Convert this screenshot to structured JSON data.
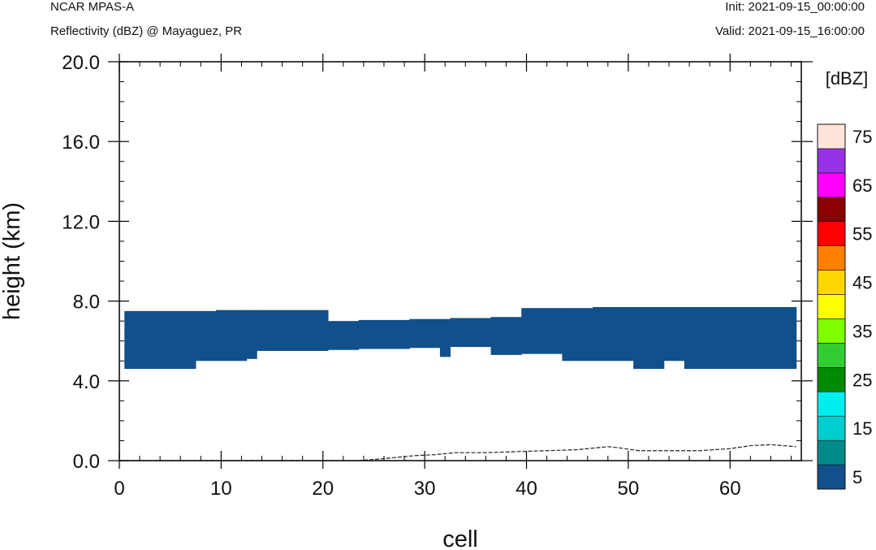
{
  "header": {
    "model": "NCAR MPAS-A",
    "field": "Reflectivity (dBZ) @ Mayaguez, PR",
    "init": "Init: 2021-09-15_00:00:00",
    "valid": "Valid: 2021-09-15_16:00:00"
  },
  "chart_data": {
    "type": "heatmap",
    "xlabel": "cell",
    "ylabel": "height (km)",
    "xlim": [
      0,
      67
    ],
    "ylim": [
      0,
      20
    ],
    "x_ticks": [
      0,
      10,
      20,
      30,
      40,
      50,
      60
    ],
    "x_tick_labels": [
      "0",
      "10",
      "20",
      "30",
      "40",
      "50",
      "60"
    ],
    "y_ticks": [
      0,
      4,
      8,
      12,
      16,
      20
    ],
    "y_tick_labels": [
      "0.0",
      "4.0",
      "8.0",
      "12.0",
      "16.0",
      "20.0"
    ],
    "reflectivity_band_5_dBZ": [
      {
        "x0": 0.5,
        "x1": 7.5,
        "bottom": 4.6,
        "top": 7.5
      },
      {
        "x0": 7.5,
        "x1": 9.5,
        "bottom": 5.0,
        "top": 7.5
      },
      {
        "x0": 9.5,
        "x1": 12.5,
        "bottom": 5.0,
        "top": 7.55
      },
      {
        "x0": 12.5,
        "x1": 13.5,
        "bottom": 5.1,
        "top": 7.55
      },
      {
        "x0": 13.5,
        "x1": 20.5,
        "bottom": 5.5,
        "top": 7.55
      },
      {
        "x0": 20.5,
        "x1": 23.5,
        "bottom": 5.55,
        "top": 7.0
      },
      {
        "x0": 23.5,
        "x1": 28.5,
        "bottom": 5.6,
        "top": 7.05
      },
      {
        "x0": 28.5,
        "x1": 31.5,
        "bottom": 5.65,
        "top": 7.1
      },
      {
        "x0": 31.5,
        "x1": 32.5,
        "bottom": 5.2,
        "top": 7.1
      },
      {
        "x0": 32.5,
        "x1": 36.5,
        "bottom": 5.7,
        "top": 7.15
      },
      {
        "x0": 36.5,
        "x1": 39.5,
        "bottom": 5.3,
        "top": 7.2
      },
      {
        "x0": 39.5,
        "x1": 43.5,
        "bottom": 5.35,
        "top": 7.65
      },
      {
        "x0": 43.5,
        "x1": 46.5,
        "bottom": 5.0,
        "top": 7.65
      },
      {
        "x0": 46.5,
        "x1": 50.5,
        "bottom": 5.0,
        "top": 7.7
      },
      {
        "x0": 50.5,
        "x1": 53.5,
        "bottom": 4.6,
        "top": 7.7
      },
      {
        "x0": 53.5,
        "x1": 55.5,
        "bottom": 5.0,
        "top": 7.7
      },
      {
        "x0": 55.5,
        "x1": 66.5,
        "bottom": 4.6,
        "top": 7.7
      }
    ],
    "terrain_height_km": {
      "x": [
        0,
        23.5,
        26,
        29,
        31,
        33,
        36,
        39,
        42,
        45,
        48,
        49,
        51,
        54,
        57,
        60,
        62,
        64,
        66.5
      ],
      "y": [
        0,
        0,
        0.1,
        0.25,
        0.3,
        0.4,
        0.4,
        0.45,
        0.5,
        0.55,
        0.7,
        0.65,
        0.5,
        0.5,
        0.5,
        0.6,
        0.75,
        0.8,
        0.7
      ]
    },
    "colorbar": {
      "title": "[dBZ]",
      "levels": [
        5,
        10,
        15,
        20,
        25,
        30,
        35,
        40,
        45,
        50,
        55,
        60,
        65,
        70,
        75
      ],
      "labels": [
        "5",
        "15",
        "25",
        "35",
        "45",
        "55",
        "65",
        "75"
      ],
      "colors": [
        "#11508a",
        "#008b8b",
        "#00cdcd",
        "#00eeee",
        "#008b00",
        "#32cd32",
        "#7fff00",
        "#ffff00",
        "#ffd700",
        "#ff7f00",
        "#ff0000",
        "#8b0000",
        "#ff00ff",
        "#9932e6",
        "#ffe4da"
      ]
    }
  }
}
